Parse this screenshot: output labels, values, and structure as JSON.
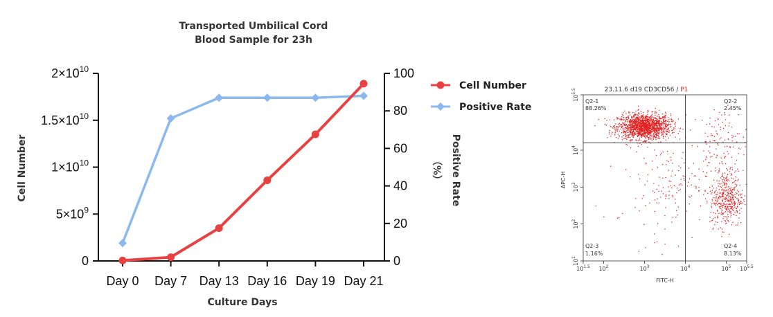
{
  "chart_data": [
    {
      "type": "line",
      "title_lines": [
        "Transported Umbilical Cord",
        "Blood Sample for 23h"
      ],
      "xlabel": "Culture Days",
      "ylabel_left": "Cell Number",
      "ylabel_right": "Positive Rate",
      "ylabel_right_unit": "（%）",
      "categories": [
        "Day 0",
        "Day 7",
        "Day 13",
        "Day 16",
        "Day 19",
        "Day 21"
      ],
      "left_ticks": [
        {
          "value": 0,
          "label": "0"
        },
        {
          "value": 5000000000,
          "label": "5×10",
          "sup": "9"
        },
        {
          "value": 10000000000,
          "label": "1×10",
          "sup": "10"
        },
        {
          "value": 15000000000,
          "label": "1.5×10",
          "sup": "10"
        },
        {
          "value": 20000000000,
          "label": "2×10",
          "sup": "10"
        }
      ],
      "right_ticks": [
        0,
        20,
        40,
        60,
        80,
        100
      ],
      "ylim_left": [
        0,
        20000000000
      ],
      "ylim_right": [
        0,
        100
      ],
      "legend_position": "top-right",
      "series": [
        {
          "name": "Cell Number",
          "axis": "left",
          "color": "#e84141",
          "marker": "circle",
          "values": [
            50000000,
            400000000,
            3500000000,
            8600000000,
            13500000000,
            18900000000
          ]
        },
        {
          "name": "Positive Rate",
          "axis": "right",
          "color": "#8bb9ef",
          "marker": "diamond",
          "values": [
            9.5,
            76,
            87,
            87,
            87,
            88
          ]
        }
      ]
    },
    {
      "type": "scatter",
      "title": "23.11.6 d19 CD3CD56 / ",
      "title_gate": "P1",
      "xlabel": "FITC-H",
      "ylabel": "APC-H",
      "scale": "log",
      "xlim_log10": [
        1.5,
        5.5
      ],
      "ylim_log10": [
        1,
        5.5
      ],
      "x_ticks": [
        {
          "log": 1.5,
          "base": "10",
          "sup": "1.5"
        },
        {
          "log": 2,
          "base": "10",
          "sup": "2"
        },
        {
          "log": 3,
          "base": "10",
          "sup": "3"
        },
        {
          "log": 4,
          "base": "10",
          "sup": "4"
        },
        {
          "log": 5,
          "base": "10",
          "sup": "5"
        },
        {
          "log": 5.5,
          "base": "10",
          "sup": "5.5"
        }
      ],
      "y_ticks": [
        {
          "log": 1,
          "base": "10",
          "sup": "1"
        },
        {
          "log": 2,
          "base": "10",
          "sup": "2"
        },
        {
          "log": 3,
          "base": "10",
          "sup": "3"
        },
        {
          "log": 4,
          "base": "10",
          "sup": "4"
        },
        {
          "log": 5.5,
          "base": "10",
          "sup": "5.5"
        }
      ],
      "gate_x_log10": 4,
      "gate_y_log10": 4.2,
      "dot_color": "#e32020",
      "quadrants": [
        {
          "name": "Q2-1",
          "percent": "88.26%",
          "center_log10": [
            2.98,
            4.65
          ]
        },
        {
          "name": "Q2-2",
          "percent": "2.45%",
          "center_log10": [
            4.9,
            4.7
          ]
        },
        {
          "name": "Q2-3",
          "percent": "1.16%",
          "center_log10": [
            3.2,
            3.5
          ]
        },
        {
          "name": "Q2-4",
          "percent": "8.13%",
          "center_log10": [
            5.0,
            2.7
          ]
        }
      ]
    }
  ]
}
